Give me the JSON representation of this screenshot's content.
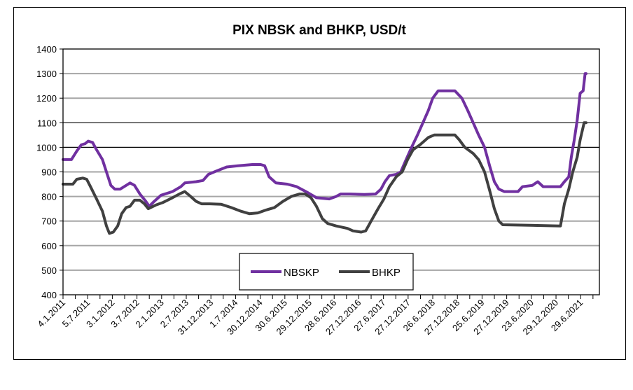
{
  "chart_data": {
    "type": "line",
    "title": "PIX NBSK and BHKP, USD/t",
    "xlabel": "",
    "ylabel": "",
    "x_unit": "decimal year",
    "xlim": [
      2011.0,
      2021.88
    ],
    "ylim": [
      400,
      1400
    ],
    "yticks": [
      400,
      500,
      600,
      700,
      800,
      900,
      1000,
      1100,
      1200,
      1300,
      1400
    ],
    "emphasized_gridlines": [
      1000,
      1100
    ],
    "grid": true,
    "legend_position": "bottom-center",
    "xtick_labels": [
      "4.1.2011",
      "5.7.2011",
      "3.1.2012",
      "3.7.2012",
      "2.1.2013",
      "2.7.2013",
      "31.12.2013",
      "1.7.2014",
      "30.12.2014",
      "30.6.2015",
      "29.12.2015",
      "28.6.2016",
      "27.12.2016",
      "27.6.2017",
      "27.12.2017",
      "26.6.2018",
      "27.12.2018",
      "25.6.2019",
      "27.12.2019",
      "23.6.2020",
      "29.12.2020",
      "29.6.2021"
    ],
    "series": [
      {
        "name": "NBSKP",
        "color": "#7030a0",
        "x": [
          2011.0,
          2011.17,
          2011.28,
          2011.37,
          2011.45,
          2011.51,
          2011.6,
          2011.68,
          2011.8,
          2011.88,
          2011.97,
          2012.05,
          2012.16,
          2012.28,
          2012.36,
          2012.45,
          2012.56,
          2012.68,
          2012.75,
          2012.85,
          2012.99,
          2013.22,
          2013.39,
          2013.47,
          2013.7,
          2013.84,
          2013.95,
          2014.13,
          2014.32,
          2014.55,
          2014.84,
          2015.01,
          2015.09,
          2015.18,
          2015.32,
          2015.55,
          2015.74,
          2015.97,
          2016.14,
          2016.4,
          2016.54,
          2016.63,
          2016.82,
          2017.11,
          2017.34,
          2017.45,
          2017.53,
          2017.62,
          2017.76,
          2017.85,
          2017.96,
          2018.07,
          2018.19,
          2018.3,
          2018.41,
          2018.5,
          2018.61,
          2018.95,
          2019.09,
          2019.21,
          2019.32,
          2019.43,
          2019.55,
          2019.66,
          2019.75,
          2019.84,
          2019.95,
          2020.23,
          2020.32,
          2020.52,
          2020.63,
          2020.74,
          2021.09,
          2021.17,
          2021.26,
          2021.31,
          2021.37,
          2021.43,
          2021.49,
          2021.55,
          2021.59,
          2021.61
        ],
        "values": [
          950,
          950,
          985,
          1010,
          1015,
          1025,
          1020,
          990,
          950,
          900,
          845,
          830,
          830,
          845,
          855,
          845,
          810,
          780,
          760,
          780,
          805,
          820,
          840,
          855,
          860,
          865,
          890,
          905,
          920,
          925,
          930,
          930,
          925,
          880,
          855,
          850,
          840,
          815,
          795,
          790,
          800,
          810,
          810,
          808,
          810,
          830,
          860,
          885,
          890,
          900,
          950,
          1000,
          1050,
          1100,
          1150,
          1200,
          1230,
          1230,
          1200,
          1150,
          1100,
          1050,
          1000,
          920,
          860,
          830,
          820,
          820,
          840,
          845,
          860,
          840,
          840,
          860,
          880,
          960,
          1030,
          1110,
          1220,
          1230,
          1300,
          1300
        ]
      },
      {
        "name": "BHKP",
        "color": "#404040",
        "x": [
          2011.0,
          2011.2,
          2011.28,
          2011.4,
          2011.48,
          2011.57,
          2011.68,
          2011.8,
          2011.88,
          2011.94,
          2012.02,
          2012.11,
          2012.19,
          2012.28,
          2012.36,
          2012.45,
          2012.56,
          2012.65,
          2012.73,
          2012.88,
          2013.02,
          2013.22,
          2013.36,
          2013.47,
          2013.59,
          2013.7,
          2013.81,
          2013.98,
          2014.21,
          2014.41,
          2014.61,
          2014.78,
          2014.95,
          2015.12,
          2015.29,
          2015.46,
          2015.63,
          2015.8,
          2015.91,
          2016.03,
          2016.14,
          2016.26,
          2016.37,
          2016.54,
          2016.77,
          2016.88,
          2017.05,
          2017.14,
          2017.25,
          2017.39,
          2017.51,
          2017.62,
          2017.76,
          2017.88,
          2017.99,
          2018.1,
          2018.24,
          2018.41,
          2018.53,
          2018.95,
          2019.04,
          2019.15,
          2019.32,
          2019.43,
          2019.55,
          2019.66,
          2019.75,
          2019.84,
          2019.92,
          2021.09,
          2021.17,
          2021.26,
          2021.34,
          2021.43,
          2021.49,
          2021.57,
          2021.61
        ],
        "values": [
          850,
          850,
          870,
          875,
          870,
          835,
          790,
          740,
          680,
          650,
          655,
          680,
          730,
          755,
          760,
          785,
          785,
          770,
          750,
          765,
          775,
          795,
          810,
          820,
          800,
          780,
          770,
          770,
          768,
          755,
          740,
          730,
          733,
          745,
          755,
          780,
          800,
          810,
          810,
          795,
          760,
          710,
          690,
          680,
          670,
          660,
          655,
          660,
          700,
          750,
          790,
          840,
          880,
          900,
          950,
          990,
          1010,
          1040,
          1050,
          1050,
          1030,
          1000,
          975,
          950,
          900,
          820,
          750,
          700,
          685,
          680,
          770,
          830,
          900,
          960,
          1030,
          1100,
          1100
        ]
      }
    ]
  }
}
